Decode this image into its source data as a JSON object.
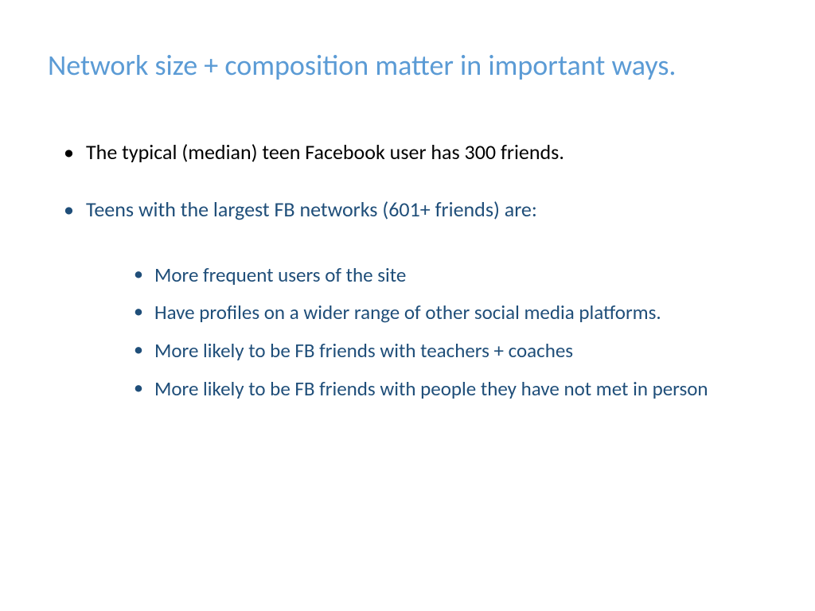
{
  "slide": {
    "title": "Network size + composition matter in important ways.",
    "title_color": "#5b9bd5",
    "title_fontsize": 36,
    "background_color": "#ffffff",
    "bullets": [
      {
        "text": "The typical (median) teen Facebook user has 300 friends.",
        "color": "#000000",
        "class": "color-black"
      },
      {
        "text": "Teens with the largest FB networks (601+ friends) are:",
        "color": "#1f4e79",
        "class": "color-blue",
        "sub_bullets": [
          "More frequent users of the site",
          "Have profiles on a wider range of other social media platforms.",
          "More likely to be FB friends with teachers + coaches",
          "More likely to be FB friends with people they have not met in person"
        ]
      }
    ],
    "body_fontsize": 26,
    "sub_bullet_fontsize": 25,
    "sub_bullet_color": "#1f4e79"
  }
}
